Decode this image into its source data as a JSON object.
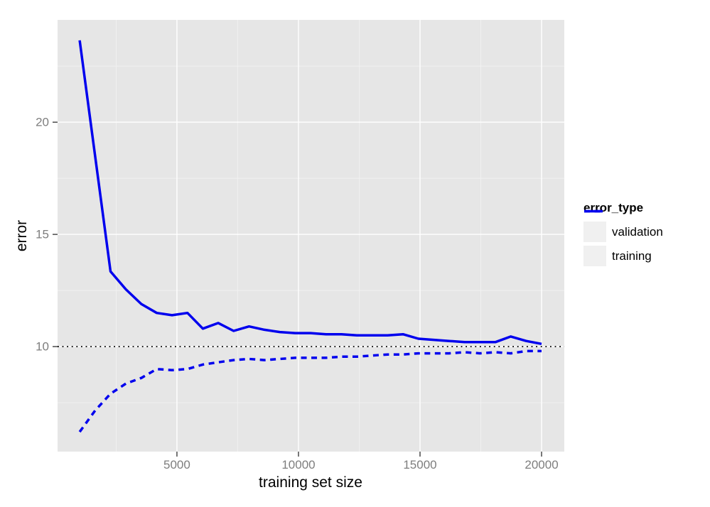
{
  "chart_data": {
    "type": "line",
    "title": "",
    "xlabel": "training set size",
    "ylabel": "error",
    "xlim": [
      90,
      20935
    ],
    "ylim": [
      5.32,
      24.56
    ],
    "x_ticks": [
      {
        "value": 5000,
        "label": "5000"
      },
      {
        "value": 10000,
        "label": "10000"
      },
      {
        "value": 15000,
        "label": "15000"
      },
      {
        "value": 20000,
        "label": "20000"
      }
    ],
    "y_ticks": [
      {
        "value": 10,
        "label": "10"
      },
      {
        "value": 15,
        "label": "15"
      },
      {
        "value": 20,
        "label": "20"
      }
    ],
    "x_minor_ticks": [
      2500,
      7500,
      12500,
      17500
    ],
    "y_minor_ticks": [
      7.5,
      12.5,
      17.5,
      22.5
    ],
    "grid": true,
    "legend": {
      "title": "error_type",
      "position": "right",
      "entries": [
        {
          "label": "validation",
          "line_style": "solid"
        },
        {
          "label": "training",
          "line_style": "dashed"
        }
      ]
    },
    "reference_line": {
      "y": 10,
      "style": "dotted",
      "color": "#000000"
    },
    "x": [
      1000,
      1633,
      2267,
      2900,
      3533,
      4167,
      4800,
      5433,
      6067,
      6700,
      7333,
      7967,
      8600,
      9233,
      9867,
      10500,
      11133,
      11767,
      12400,
      13033,
      13667,
      14300,
      14933,
      15567,
      16200,
      16833,
      17467,
      18100,
      18733,
      19367,
      20000
    ],
    "series": [
      {
        "name": "validation",
        "style": "solid",
        "color": "#0000ee",
        "values": [
          23.65,
          18.5,
          13.35,
          12.55,
          11.9,
          11.5,
          11.4,
          11.5,
          10.8,
          11.05,
          10.7,
          10.9,
          10.75,
          10.65,
          10.6,
          10.6,
          10.55,
          10.55,
          10.5,
          10.5,
          10.5,
          10.55,
          10.35,
          10.3,
          10.25,
          10.2,
          10.2,
          10.2,
          10.45,
          10.25,
          10.12
        ]
      },
      {
        "name": "training",
        "style": "dashed",
        "color": "#0000ee",
        "values": [
          6.2,
          7.15,
          7.9,
          8.35,
          8.6,
          9.0,
          8.95,
          9.0,
          9.2,
          9.3,
          9.4,
          9.45,
          9.4,
          9.45,
          9.5,
          9.5,
          9.5,
          9.55,
          9.55,
          9.6,
          9.65,
          9.65,
          9.7,
          9.7,
          9.7,
          9.75,
          9.7,
          9.75,
          9.7,
          9.8,
          9.8
        ]
      }
    ],
    "colors": {
      "panel_background": "#e6e6e6",
      "grid_major": "#ffffff",
      "grid_minor": "#f1f1f1",
      "line": "#0000ee",
      "axis_text": "#7e7e7e",
      "axis_title": "#000000",
      "tick_mark": "#555555",
      "legend_key_background": "#f0f0f0"
    }
  }
}
